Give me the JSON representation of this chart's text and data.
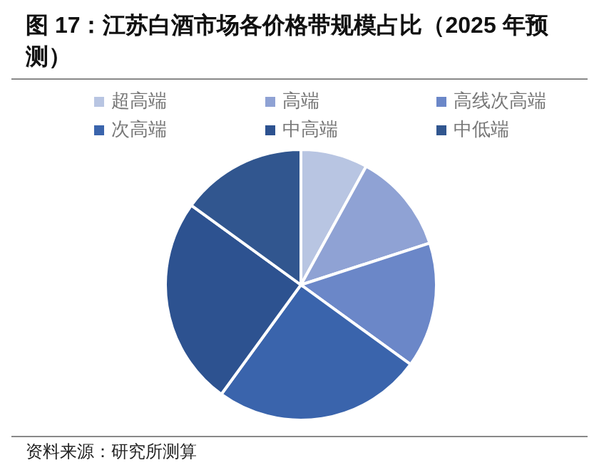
{
  "chart_data": {
    "type": "pie",
    "title": "图 17：江苏白酒市场各价格带规模占比（2025 年预测）",
    "categories": [
      "超高端",
      "高端",
      "高线次高端",
      "次高端",
      "中高端",
      "中低端"
    ],
    "values": [
      8,
      12,
      15,
      25,
      25,
      15
    ],
    "colors": [
      "#b8c5e2",
      "#8fa2d4",
      "#6b87c8",
      "#3a64ac",
      "#2d5290",
      "#31568f"
    ],
    "legend": "top",
    "annotations": [
      "资料来源：研究所测算"
    ]
  }
}
